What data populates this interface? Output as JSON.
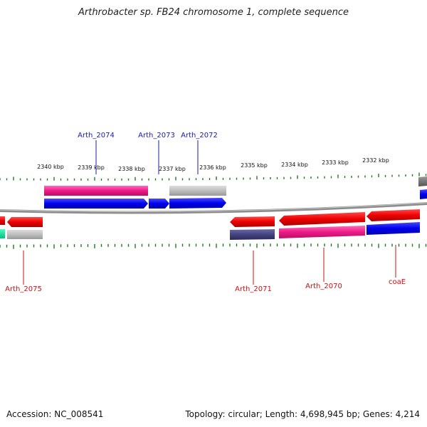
{
  "title": "Arthrobacter sp. FB24 chromosome 1, complete sequence",
  "footer": {
    "accession": "Accession: NC_008541",
    "summary": "Topology: circular; Length: 4,698,945 bp; Genes: 4,214"
  },
  "colors": {
    "plus_label": "#1a1aa8",
    "minus_label": "#cc1111",
    "backbone": "#888888",
    "tick": "#1f7a1f"
  },
  "scale": {
    "ticks": [
      {
        "label": "2340 kbp"
      },
      {
        "label": "2339 kbp"
      },
      {
        "label": "2338 kbp"
      },
      {
        "label": "2337 kbp"
      },
      {
        "label": "2336 kbp"
      },
      {
        "label": "2335 kbp"
      },
      {
        "label": "2334 kbp"
      },
      {
        "label": "2333 kbp"
      },
      {
        "label": "2332 kbp"
      }
    ]
  },
  "gene_labels": [
    {
      "name": "Arth_2074",
      "strand": "plus"
    },
    {
      "name": "Arth_2073",
      "strand": "plus"
    },
    {
      "name": "Arth_2072",
      "strand": "plus"
    },
    {
      "name": "Arth_2075",
      "strand": "minus"
    },
    {
      "name": "Arth_2071",
      "strand": "minus"
    },
    {
      "name": "Arth_2070",
      "strand": "minus"
    },
    {
      "name": "coaE",
      "strand": "minus"
    }
  ]
}
